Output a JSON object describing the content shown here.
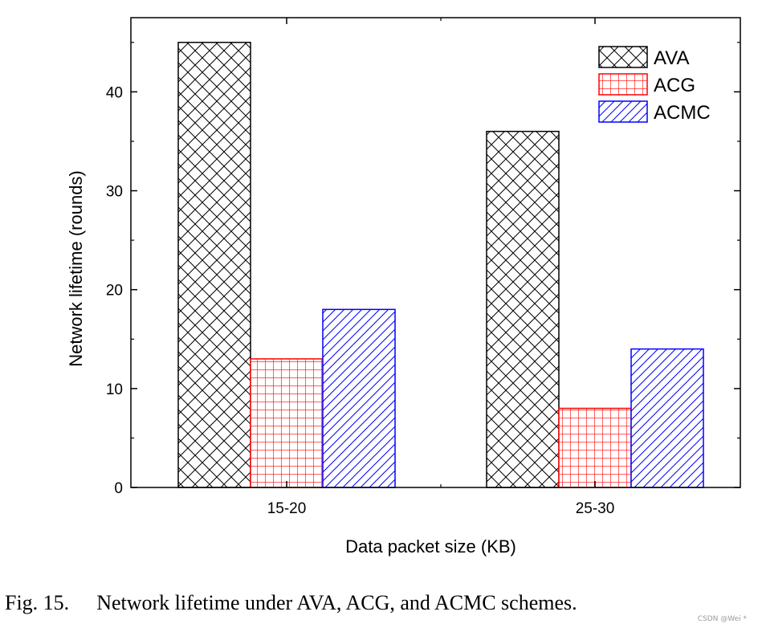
{
  "chart_data": {
    "type": "bar",
    "categories": [
      "15-20",
      "25-30"
    ],
    "series": [
      {
        "name": "AVA",
        "values": [
          45,
          36
        ],
        "color": "#000000",
        "pattern": "crosshatch"
      },
      {
        "name": "ACG",
        "values": [
          13,
          8
        ],
        "color": "#ff0000",
        "pattern": "grid"
      },
      {
        "name": "ACMC",
        "values": [
          18,
          14
        ],
        "color": "#0000ff",
        "pattern": "diagonal"
      }
    ],
    "xlabel": "Data packet size (KB)",
    "ylabel": "Network lifetime (rounds)",
    "ylim": [
      0,
      47.5
    ],
    "yticks": [
      0,
      10,
      20,
      30,
      40
    ],
    "legend_position": "top-right",
    "grid": false
  },
  "caption": {
    "figure_number": "Fig. 15.",
    "text": "Network lifetime under AVA, ACG, and ACMC schemes."
  },
  "watermark": "CSDN @Wei *"
}
